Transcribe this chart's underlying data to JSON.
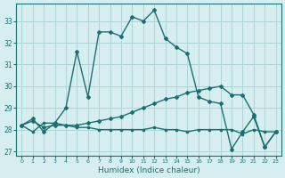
{
  "xlabel": "Humidex (Indice chaleur)",
  "background_color": "#d6eef0",
  "grid_color": "#b0d4d8",
  "line_color": "#1a7070",
  "xlim": [
    -0.5,
    23.5
  ],
  "ylim": [
    26.8,
    33.8
  ],
  "yticks": [
    27,
    28,
    29,
    30,
    31,
    32,
    33
  ],
  "xticks": [
    0,
    1,
    2,
    3,
    4,
    5,
    6,
    7,
    8,
    9,
    10,
    11,
    12,
    13,
    14,
    15,
    16,
    17,
    18,
    19,
    20,
    21,
    22,
    23
  ],
  "line1_x": [
    0,
    1,
    2,
    3,
    4,
    5,
    6,
    7,
    8,
    9,
    10,
    11,
    12,
    13,
    14,
    15,
    16,
    17,
    18,
    19,
    20,
    21,
    22,
    23
  ],
  "line1_y": [
    28.2,
    28.5,
    27.9,
    28.3,
    29.0,
    31.6,
    29.5,
    32.5,
    32.5,
    32.3,
    33.2,
    33.0,
    33.5,
    32.2,
    31.8,
    31.5,
    29.5,
    29.3,
    29.2,
    27.1,
    27.9,
    28.6,
    27.2,
    27.9
  ],
  "line2_x": [
    0,
    1,
    2,
    3,
    4,
    5,
    6,
    7,
    8,
    9,
    10,
    11,
    12,
    13,
    14,
    15,
    16,
    17,
    18,
    19,
    20,
    21,
    22,
    23
  ],
  "line2_y": [
    28.2,
    28.4,
    28.1,
    28.2,
    28.2,
    28.2,
    28.3,
    28.4,
    28.5,
    28.6,
    28.8,
    29.0,
    29.2,
    29.4,
    29.5,
    29.7,
    29.8,
    29.9,
    30.0,
    29.6,
    29.6,
    28.7,
    27.2,
    27.9
  ],
  "line3_x": [
    0,
    1,
    2,
    3,
    4,
    5,
    6,
    7,
    8,
    9,
    10,
    11,
    12,
    13,
    14,
    15,
    16,
    17,
    18,
    19,
    20,
    21,
    22,
    23
  ],
  "line3_y": [
    28.2,
    27.9,
    28.3,
    28.3,
    28.2,
    28.1,
    28.1,
    28.0,
    28.0,
    28.0,
    28.0,
    28.0,
    28.1,
    28.0,
    28.0,
    27.9,
    28.0,
    28.0,
    28.0,
    28.0,
    27.8,
    28.0,
    27.9,
    27.9
  ]
}
